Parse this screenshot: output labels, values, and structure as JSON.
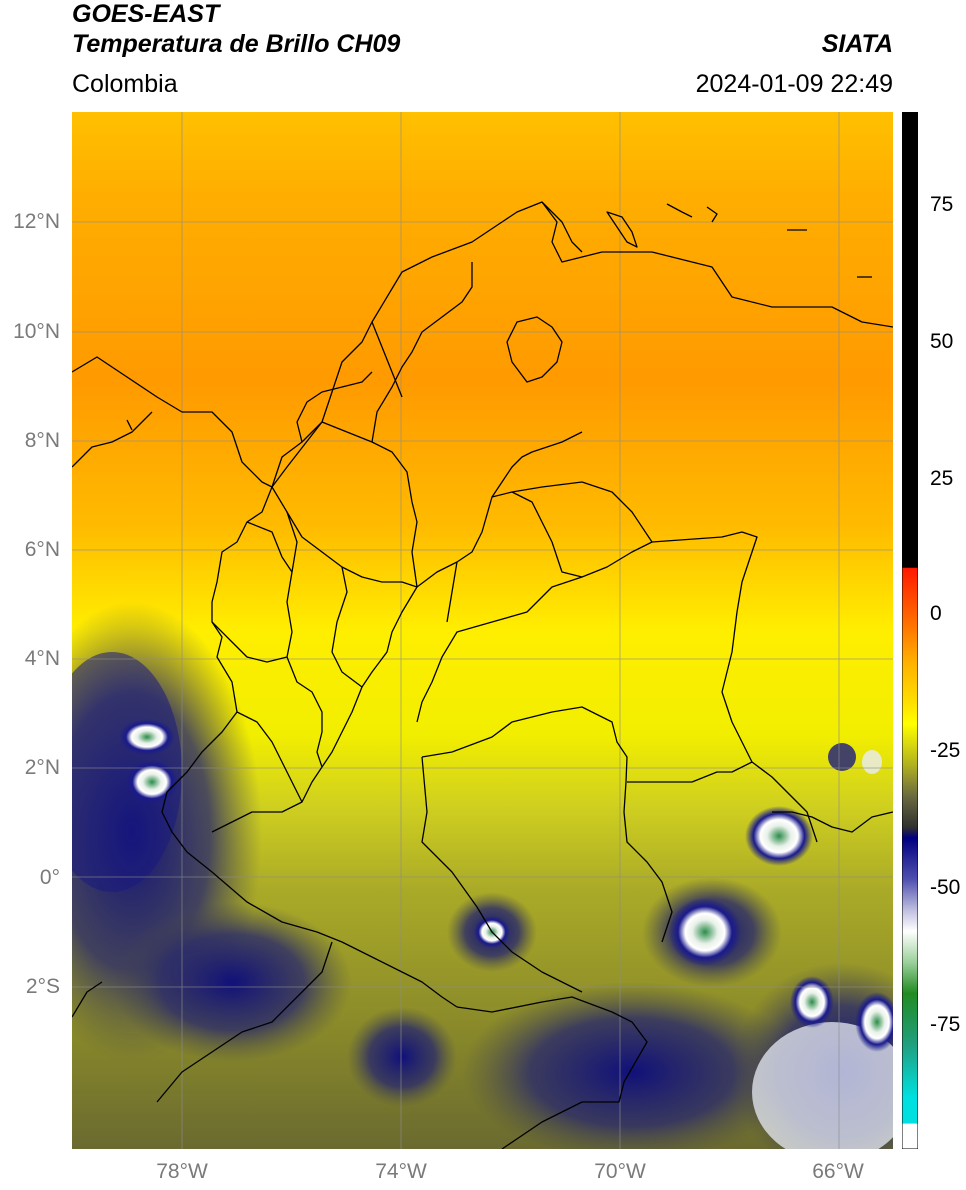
{
  "header": {
    "satellite": "GOES-EAST",
    "product": "Temperatura de Brillo CH09",
    "region": "Colombia",
    "agency": "SIATA",
    "datetime": "2024-01-09 22:49"
  },
  "map": {
    "lat_labels": [
      "12°N",
      "10°N",
      "8°N",
      "6°N",
      "4°N",
      "2°N",
      "0°",
      "2°S"
    ],
    "lon_labels": [
      "78°W",
      "74°W",
      "70°W",
      "66°W"
    ],
    "grid": true,
    "extent": {
      "lon_min": -80,
      "lon_max": -65,
      "lat_min": -5,
      "lat_max": 14
    }
  },
  "colorbar": {
    "ticks": [
      "75",
      "50",
      "25",
      "0",
      "-25",
      "-50",
      "-75"
    ],
    "colors": {
      "black": "#000000",
      "red": "#ff1a00",
      "orange": "#ffa500",
      "yellow": "#ffff00",
      "olive": "#a0a020",
      "gray": "#4a4a4a",
      "navy": "#000080",
      "white": "#ffffff",
      "green": "#228b22",
      "cyan": "#00e0e0"
    }
  }
}
